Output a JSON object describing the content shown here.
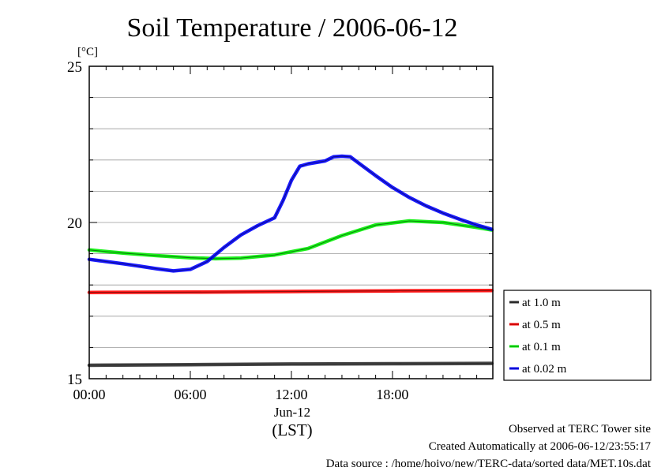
{
  "chart_data": {
    "type": "line",
    "title": "Soil Temperature / 2006-06-12",
    "unit_label": "[°C]",
    "xlabel_date": "Jun-12",
    "xlabel_tz": "(LST)",
    "x_ticks": [
      "00:00",
      "06:00",
      "12:00",
      "18:00"
    ],
    "y_ticks": [
      "15",
      "20",
      "25"
    ],
    "ylim": [
      15,
      25
    ],
    "xlim_hours": [
      0,
      23.9
    ],
    "grid": true,
    "legend_position": "right",
    "series": [
      {
        "name": "at 1.0 m",
        "color": "#333333",
        "x": [
          0,
          6,
          12,
          18,
          23.9
        ],
        "y": [
          15.43,
          15.45,
          15.47,
          15.48,
          15.49
        ]
      },
      {
        "name": "at 0.5 m",
        "color": "#ff0000",
        "x": [
          0,
          6,
          12,
          18,
          23.9
        ],
        "y": [
          17.76,
          17.77,
          17.79,
          17.81,
          17.82
        ]
      },
      {
        "name": "at 0.1 m",
        "color": "#00ee00",
        "x": [
          0,
          2,
          4,
          6,
          7.5,
          9,
          11,
          13,
          15,
          17,
          19,
          21,
          23,
          23.9
        ],
        "y": [
          19.12,
          19.02,
          18.94,
          18.87,
          18.84,
          18.86,
          18.96,
          19.17,
          19.58,
          19.92,
          20.05,
          20.0,
          19.84,
          19.76
        ]
      },
      {
        "name": "at 0.02 m",
        "color": "#0000ff",
        "x": [
          0,
          1,
          2,
          3,
          4,
          5,
          6,
          7,
          8,
          9,
          10,
          11,
          11.5,
          12,
          12.5,
          13,
          14,
          14.5,
          15,
          15.5,
          16,
          17,
          18,
          19,
          20,
          21,
          22,
          23,
          23.9
        ],
        "y": [
          18.82,
          18.75,
          18.68,
          18.6,
          18.52,
          18.45,
          18.5,
          18.75,
          19.2,
          19.6,
          19.9,
          20.15,
          20.7,
          21.35,
          21.8,
          21.88,
          21.97,
          22.1,
          22.12,
          22.1,
          21.9,
          21.5,
          21.12,
          20.8,
          20.53,
          20.3,
          20.1,
          19.92,
          19.78
        ]
      }
    ]
  },
  "footer": {
    "line1": "Observed at TERC Tower site",
    "line2": "Created Automatically at 2006-06-12/23:55:17",
    "line3": "Data source : /home/hoivo/new/TERC-data/sorted  data/MET.10s.dat"
  }
}
